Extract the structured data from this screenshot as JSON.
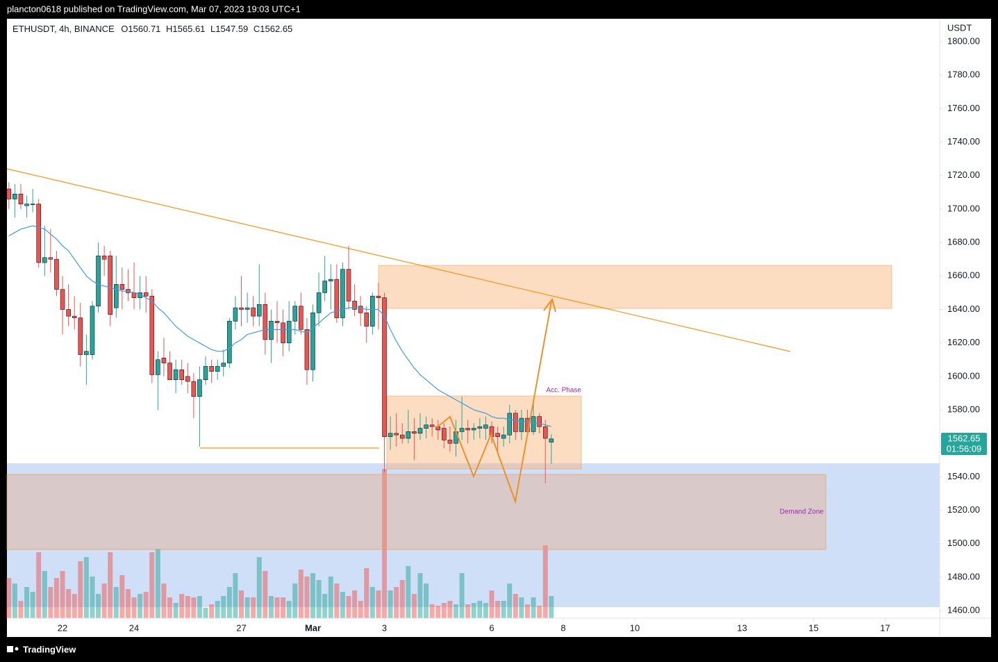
{
  "header": "plancton0618 published on TradingView.com, Mar 07, 2023 19:03 UTC+1",
  "footer": "TradingView",
  "chart_data": {
    "type": "candlestick",
    "title": "ETHUSDT, 4h, BINANCE",
    "ohlc_labels": [
      "O",
      "H",
      "L",
      "C"
    ],
    "y_axis_label": "USDT",
    "countdown": "01:56:09",
    "annotations": [
      "Acc. Phase",
      "Demand Zone"
    ],
    "up_color": "#26a69a",
    "down_color": "#ef5350",
    "ma_color": "#3d9be9",
    "xlim": [
      10.7,
      636.6
    ],
    "xticks": [
      {
        "value": 48,
        "label": "22"
      },
      {
        "value": 96,
        "label": "24"
      },
      {
        "value": 168,
        "label": "27"
      },
      {
        "value": 216,
        "label": "Mar"
      },
      {
        "value": 264,
        "label": "3"
      },
      {
        "value": 336,
        "label": "6"
      },
      {
        "value": 384,
        "label": "8"
      },
      {
        "value": 432,
        "label": "10"
      },
      {
        "value": 504,
        "label": "13"
      },
      {
        "value": 552,
        "label": "15"
      },
      {
        "value": 600,
        "label": "17"
      }
    ],
    "ylim": [
      1455.5,
      1813.7
    ],
    "yticks": [
      {
        "value": 1460,
        "label": "1460.00"
      },
      {
        "value": 1480,
        "label": "1480.00"
      },
      {
        "value": 1500,
        "label": "1500.00"
      },
      {
        "value": 1520,
        "label": "1520.00"
      },
      {
        "value": 1540,
        "label": "1540.00"
      },
      {
        "value": 1560,
        "label": "1560.00"
      },
      {
        "value": 1580,
        "label": "1580.00"
      },
      {
        "value": 1600,
        "label": "1600.00"
      },
      {
        "value": 1620,
        "label": "1620.00"
      },
      {
        "value": 1640,
        "label": "1640.00"
      },
      {
        "value": 1660,
        "label": "1660.00"
      },
      {
        "value": 1680,
        "label": "1680.00"
      },
      {
        "value": 1700,
        "label": "1700.00"
      },
      {
        "value": 1720,
        "label": "1720.00"
      },
      {
        "value": 1740,
        "label": "1740.00"
      },
      {
        "value": 1760,
        "label": "1760.00"
      },
      {
        "value": 1780,
        "label": "1780.00"
      },
      {
        "value": 1800,
        "label": "1800.00"
      }
    ],
    "x": [
      12,
      16,
      20,
      24,
      28,
      32,
      36,
      40,
      44,
      48,
      52,
      56,
      60,
      64,
      68,
      72,
      76,
      80,
      84,
      88,
      92,
      96,
      100,
      104,
      108,
      112,
      116,
      120,
      124,
      128,
      132,
      136,
      140,
      144,
      148,
      152,
      156,
      160,
      164,
      168,
      172,
      176,
      180,
      184,
      188,
      192,
      196,
      200,
      204,
      208,
      212,
      216,
      220,
      224,
      228,
      232,
      236,
      240,
      244,
      248,
      252,
      256,
      260,
      264,
      268,
      272,
      276,
      280,
      284,
      288,
      292,
      296,
      300,
      304,
      308,
      312,
      316,
      320,
      324,
      328,
      332,
      336,
      340,
      344,
      348,
      352,
      356,
      360,
      364,
      368,
      372,
      376
    ],
    "open": [
      1712,
      1706,
      1709,
      1702,
      1703,
      1703,
      1668,
      1671,
      1670,
      1652,
      1640,
      1636,
      1635,
      1613,
      1613,
      1642,
      1672,
      1672,
      1641,
      1655,
      1652,
      1650,
      1647,
      1650,
      1648,
      1601,
      1611,
      1608,
      1598,
      1604,
      1600,
      1597,
      1588,
      1598,
      1606,
      1603,
      1606,
      1608,
      1633,
      1641,
      1640,
      1641,
      1636,
      1643,
      1622,
      1633,
      1632,
      1620,
      1633,
      1642,
      1628,
      1604,
      1638,
      1650,
      1657,
      1658,
      1635,
      1664,
      1645,
      1642,
      1638,
      1630,
      1648,
      1647,
      1564,
      1566,
      1565,
      1563,
      1567,
      1566,
      1569,
      1571,
      1570,
      1569,
      1562,
      1560,
      1567,
      1569,
      1568,
      1569,
      1569,
      1570,
      1566,
      1563,
      1565,
      1578,
      1567,
      1575,
      1567,
      1576,
      1570,
      1560.71
    ],
    "high": [
      1716,
      1715,
      1715,
      1708,
      1712,
      1706,
      1690,
      1688,
      1675,
      1660,
      1655,
      1648,
      1644,
      1625,
      1645,
      1680,
      1678,
      1675,
      1672,
      1665,
      1664,
      1668,
      1660,
      1660,
      1652,
      1615,
      1623,
      1615,
      1610,
      1610,
      1608,
      1602,
      1606,
      1612,
      1610,
      1610,
      1616,
      1635,
      1648,
      1660,
      1650,
      1648,
      1667,
      1650,
      1640,
      1645,
      1640,
      1645,
      1645,
      1650,
      1635,
      1643,
      1662,
      1672,
      1667,
      1667,
      1668,
      1678,
      1655,
      1648,
      1642,
      1650,
      1656,
      1650,
      1576,
      1578,
      1572,
      1580,
      1575,
      1578,
      1576,
      1575,
      1574,
      1572,
      1570,
      1574,
      1588,
      1574,
      1572,
      1575,
      1576,
      1573,
      1570,
      1570,
      1583,
      1580,
      1580,
      1580,
      1585,
      1578,
      1574,
      1565.61
    ],
    "low": [
      1700,
      1695,
      1700,
      1695,
      1698,
      1665,
      1660,
      1662,
      1648,
      1625,
      1630,
      1628,
      1606,
      1595,
      1610,
      1638,
      1660,
      1630,
      1635,
      1640,
      1645,
      1640,
      1640,
      1638,
      1596,
      1580,
      1600,
      1598,
      1590,
      1595,
      1590,
      1575,
      1558,
      1595,
      1596,
      1598,
      1600,
      1605,
      1628,
      1630,
      1632,
      1630,
      1630,
      1613,
      1608,
      1620,
      1612,
      1615,
      1625,
      1625,
      1595,
      1597,
      1630,
      1645,
      1640,
      1632,
      1630,
      1640,
      1636,
      1630,
      1620,
      1625,
      1628,
      1543,
      1556,
      1558,
      1560,
      1560,
      1550,
      1562,
      1563,
      1564,
      1562,
      1557,
      1555,
      1552,
      1562,
      1560,
      1562,
      1563,
      1562,
      1560,
      1555,
      1558,
      1560,
      1562,
      1562,
      1565,
      1565,
      1566,
      1536,
      1547.59
    ],
    "close": [
      1706,
      1709,
      1703,
      1703,
      1703,
      1668,
      1671,
      1670,
      1652,
      1640,
      1636,
      1635,
      1613,
      1615,
      1642,
      1672,
      1670,
      1637,
      1655,
      1652,
      1650,
      1647,
      1650,
      1648,
      1601,
      1610,
      1608,
      1598,
      1604,
      1598,
      1597,
      1588,
      1598,
      1606,
      1603,
      1606,
      1608,
      1633,
      1641,
      1640,
      1641,
      1636,
      1643,
      1622,
      1633,
      1632,
      1620,
      1633,
      1642,
      1628,
      1604,
      1638,
      1650,
      1657,
      1658,
      1635,
      1664,
      1645,
      1640,
      1638,
      1630,
      1648,
      1647,
      1564,
      1566,
      1565,
      1563,
      1567,
      1566,
      1569,
      1571,
      1570,
      1568,
      1562,
      1560,
      1567,
      1569,
      1568,
      1569,
      1570,
      1571,
      1564,
      1564,
      1565,
      1578,
      1567,
      1575,
      1567,
      1576,
      1570,
      1563,
      1562.65
    ],
    "volume": [
      58,
      50,
      25,
      45,
      38,
      95,
      68,
      45,
      58,
      68,
      42,
      35,
      82,
      88,
      60,
      35,
      50,
      95,
      45,
      62,
      42,
      30,
      35,
      38,
      95,
      100,
      50,
      30,
      22,
      35,
      32,
      30,
      32,
      15,
      20,
      25,
      32,
      45,
      65,
      40,
      30,
      30,
      88,
      68,
      32,
      30,
      30,
      25,
      50,
      70,
      60,
      65,
      55,
      35,
      60,
      50,
      38,
      32,
      40,
      25,
      72,
      45,
      40,
      215,
      40,
      45,
      55,
      75,
      35,
      65,
      50,
      20,
      18,
      22,
      25,
      20,
      65,
      20,
      22,
      25,
      22,
      40,
      25,
      25,
      50,
      35,
      30,
      20,
      30,
      18,
      105,
      32
    ],
    "ma": [
      1684,
      1686,
      1688,
      1689,
      1690,
      1689,
      1688,
      1685,
      1682,
      1678,
      1675,
      1670,
      1665,
      1660,
      1657,
      1655,
      1654,
      1653,
      1652,
      1651,
      1651,
      1650,
      1649,
      1647,
      1645,
      1641,
      1638,
      1634,
      1630,
      1627,
      1624,
      1622,
      1620,
      1618,
      1616,
      1615,
      1615,
      1617,
      1620,
      1622,
      1625,
      1626,
      1627,
      1628,
      1628,
      1628,
      1628,
      1628,
      1628,
      1627,
      1626,
      1629,
      1632,
      1635,
      1638,
      1639,
      1640,
      1641,
      1641,
      1641,
      1640,
      1640,
      1640,
      1636,
      1628,
      1621,
      1615,
      1610,
      1605,
      1601,
      1598,
      1595,
      1592,
      1590,
      1588,
      1586,
      1584,
      1582,
      1580,
      1579,
      1578,
      1576,
      1575,
      1575,
      1574,
      1574,
      1573,
      1573,
      1572,
      1572,
      1571,
      1570
    ]
  }
}
